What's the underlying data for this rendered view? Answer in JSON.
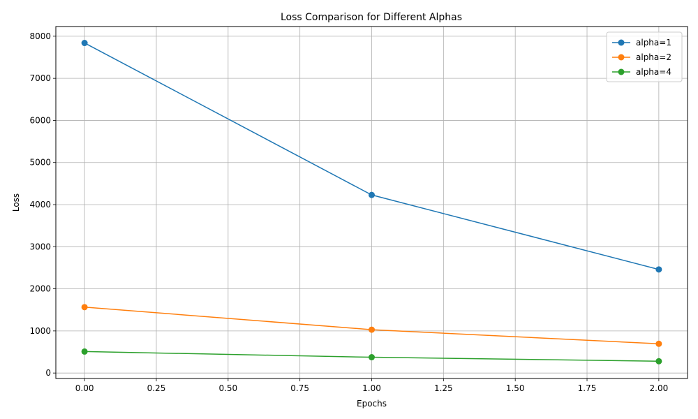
{
  "chart_data": {
    "type": "line",
    "title": "Loss Comparison for Different Alphas",
    "xlabel": "Epochs",
    "ylabel": "Loss",
    "x": [
      0,
      1,
      2
    ],
    "xlim": [
      -0.1,
      2.1
    ],
    "ylim": [
      -130,
      8230
    ],
    "xticks": [
      0.0,
      0.25,
      0.5,
      0.75,
      1.0,
      1.25,
      1.5,
      1.75,
      2.0
    ],
    "xtick_labels": [
      "0.00",
      "0.25",
      "0.50",
      "0.75",
      "1.00",
      "1.25",
      "1.50",
      "1.75",
      "2.00"
    ],
    "yticks": [
      0,
      1000,
      2000,
      3000,
      4000,
      5000,
      6000,
      7000,
      8000
    ],
    "ytick_labels": [
      "0",
      "1000",
      "2000",
      "3000",
      "4000",
      "5000",
      "6000",
      "7000",
      "8000"
    ],
    "grid": true,
    "legend_position": "top-right",
    "series": [
      {
        "name": "alpha=1",
        "color": "#1f77b4",
        "marker": "circle",
        "values": [
          7840,
          4230,
          2460
        ]
      },
      {
        "name": "alpha=2",
        "color": "#ff7f0e",
        "marker": "circle",
        "values": [
          1565,
          1030,
          695
        ]
      },
      {
        "name": "alpha=4",
        "color": "#2ca02c",
        "marker": "circle",
        "values": [
          510,
          375,
          280
        ]
      }
    ]
  }
}
